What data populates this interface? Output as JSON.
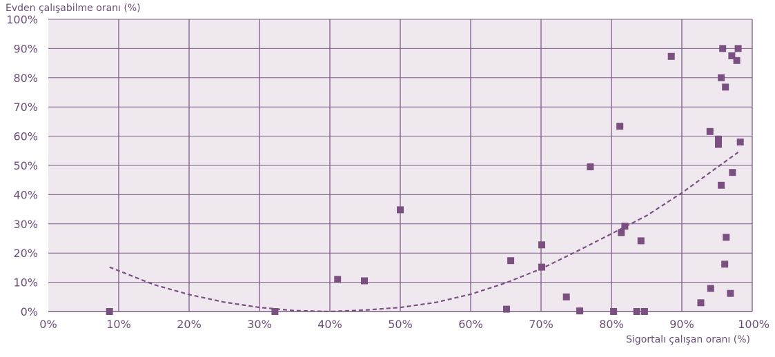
{
  "chart_data": {
    "type": "scatter",
    "xlabel": "Sigortalı çalışan oranı (%)",
    "ylabel": "Evden çalışabilme oranı (%)",
    "xlim": [
      0,
      100
    ],
    "ylim": [
      0,
      100
    ],
    "x_ticks": [
      "0%",
      "10%",
      "20%",
      "30%",
      "40%",
      "50%",
      "60%",
      "70%",
      "80%",
      "90%",
      "100%"
    ],
    "y_ticks": [
      "0%",
      "10%",
      "20%",
      "30%",
      "40%",
      "50%",
      "60%",
      "70%",
      "80%",
      "90%",
      "100%"
    ],
    "grid": "x and y",
    "colors": {
      "plot_bg": "#efe8ef",
      "grid": "#7b5a85",
      "marker": "#7a5080",
      "trend": "#7a5080",
      "text": "#6b4f78"
    },
    "points": [
      {
        "x": 8.7,
        "y": 0
      },
      {
        "x": 32.2,
        "y": 0
      },
      {
        "x": 41.1,
        "y": 11
      },
      {
        "x": 44.9,
        "y": 10.5
      },
      {
        "x": 50.0,
        "y": 34.8
      },
      {
        "x": 65.1,
        "y": 0.8
      },
      {
        "x": 65.7,
        "y": 17.4
      },
      {
        "x": 70.1,
        "y": 22.8
      },
      {
        "x": 70.1,
        "y": 15.2
      },
      {
        "x": 73.6,
        "y": 5
      },
      {
        "x": 75.5,
        "y": 0.2
      },
      {
        "x": 77.0,
        "y": 49.5
      },
      {
        "x": 80.3,
        "y": 0
      },
      {
        "x": 81.2,
        "y": 63.4
      },
      {
        "x": 81.4,
        "y": 27
      },
      {
        "x": 81.9,
        "y": 29.2
      },
      {
        "x": 83.6,
        "y": 0
      },
      {
        "x": 84.2,
        "y": 24.2
      },
      {
        "x": 84.7,
        "y": 0
      },
      {
        "x": 88.5,
        "y": 87.3
      },
      {
        "x": 92.7,
        "y": 3
      },
      {
        "x": 94.0,
        "y": 61.6
      },
      {
        "x": 94.1,
        "y": 7.9
      },
      {
        "x": 95.2,
        "y": 59
      },
      {
        "x": 95.2,
        "y": 57.2
      },
      {
        "x": 95.6,
        "y": 80
      },
      {
        "x": 95.6,
        "y": 43.2
      },
      {
        "x": 95.8,
        "y": 90
      },
      {
        "x": 96.1,
        "y": 16.2
      },
      {
        "x": 96.2,
        "y": 76.8
      },
      {
        "x": 96.3,
        "y": 25.4
      },
      {
        "x": 96.9,
        "y": 6.2
      },
      {
        "x": 97.1,
        "y": 87.5
      },
      {
        "x": 97.2,
        "y": 47.6
      },
      {
        "x": 97.8,
        "y": 85.9
      },
      {
        "x": 98.0,
        "y": 90
      },
      {
        "x": 98.3,
        "y": 58
      }
    ],
    "trendline": {
      "style": "dashed",
      "x": [
        8.7,
        15,
        20,
        25,
        30,
        35,
        40,
        45,
        50,
        55,
        60,
        65,
        70,
        75,
        80,
        85,
        90,
        95,
        98
      ],
      "y": [
        15.2,
        9.2,
        5.8,
        3.2,
        1.4,
        0.3,
        0,
        0.5,
        1.4,
        3.1,
        5.9,
        9.8,
        14.6,
        20.5,
        26.6,
        32.8,
        40.6,
        49.3,
        54.5
      ]
    }
  }
}
